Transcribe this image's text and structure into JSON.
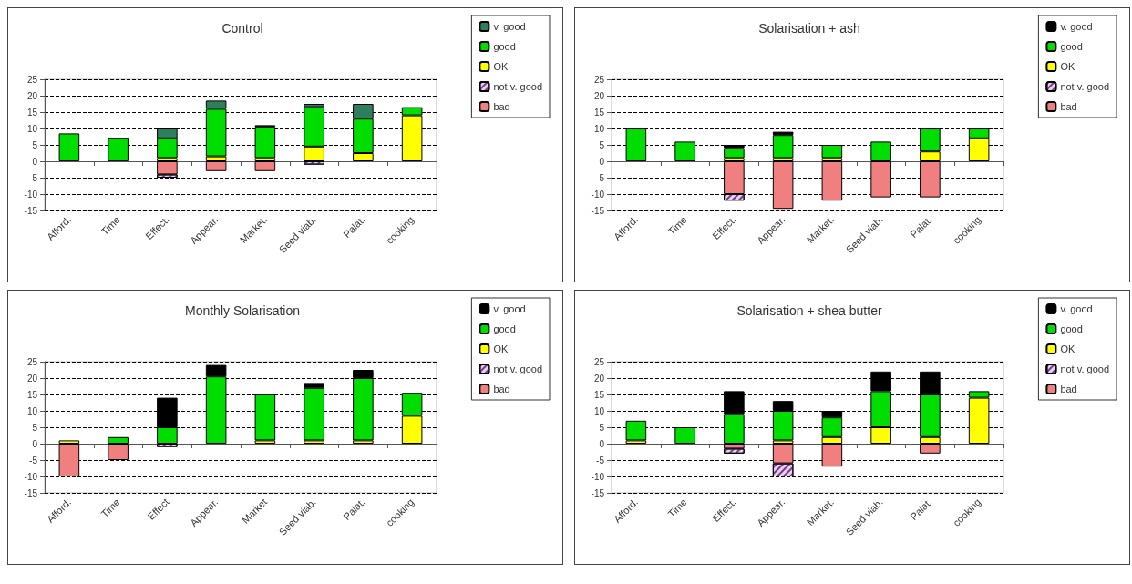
{
  "chart_data": [
    {
      "type": "bar",
      "title": "Control",
      "categories": [
        "Afford.",
        "Time",
        "Effect.",
        "Appear.",
        "Market.",
        "Seed viab.",
        "Palat.",
        "cooking"
      ],
      "stacked": true,
      "ylim": [
        -15,
        25
      ],
      "yticks": [
        -15,
        -10,
        -5,
        0,
        5,
        10,
        15,
        20,
        25
      ],
      "grid": "y",
      "legend": "top right",
      "series": [
        {
          "name": "bad",
          "color": "#f08080",
          "values": [
            null,
            null,
            -4,
            -3,
            -3,
            null,
            null,
            null
          ]
        },
        {
          "name": "not v. good",
          "color": "#e6d0ee",
          "values": [
            null,
            null,
            -1,
            null,
            null,
            -1,
            null,
            null
          ]
        },
        {
          "name": "OK",
          "color": "#ffff00",
          "values": [
            null,
            null,
            1,
            1.5,
            1,
            4.5,
            2.5,
            14
          ]
        },
        {
          "name": "good",
          "color": "#00dd00",
          "values": [
            8.5,
            7,
            6,
            14.5,
            9.5,
            12,
            10.5,
            2.5
          ]
        },
        {
          "name": "v. good",
          "color": "#2f7f5f",
          "values": [
            null,
            null,
            3,
            2.5,
            0.5,
            1,
            4.5,
            null
          ]
        }
      ]
    },
    {
      "type": "bar",
      "title": "Solarisation + ash",
      "categories": [
        "Afford.",
        "Time",
        "Effect.",
        "Appear.",
        "Market.",
        "Seed viab.",
        "Palat.",
        "cooking"
      ],
      "stacked": true,
      "ylim": [
        -15,
        25
      ],
      "yticks": [
        -15,
        -10,
        -5,
        0,
        5,
        10,
        15,
        20,
        25
      ],
      "grid": "y",
      "legend": "top right",
      "series": [
        {
          "name": "bad",
          "color": "#f08080",
          "values": [
            null,
            null,
            -10,
            -14.5,
            -12,
            -11,
            -11,
            null
          ]
        },
        {
          "name": "not v. good",
          "color": "#e6d0ee",
          "values": [
            null,
            null,
            -2,
            null,
            null,
            null,
            null,
            null
          ]
        },
        {
          "name": "OK",
          "color": "#ffff00",
          "values": [
            null,
            null,
            1,
            1,
            1,
            null,
            3,
            7
          ]
        },
        {
          "name": "good",
          "color": "#00dd00",
          "values": [
            10,
            6,
            3,
            7,
            4,
            6,
            7,
            3
          ]
        },
        {
          "name": "v. good",
          "color": "#000000",
          "values": [
            null,
            null,
            1,
            1,
            null,
            null,
            null,
            null
          ]
        }
      ]
    },
    {
      "type": "bar",
      "title": "Monthly Solarisation",
      "categories": [
        "Afford.",
        "Time",
        "Effect",
        "Appear.",
        "Market",
        "Seed viab.",
        "Palat.",
        "cooking"
      ],
      "stacked": true,
      "ylim": [
        -15,
        25
      ],
      "yticks": [
        -15,
        -10,
        -5,
        0,
        5,
        10,
        15,
        20,
        25
      ],
      "grid": "y",
      "legend": "top right",
      "series": [
        {
          "name": "bad",
          "color": "#f08080",
          "values": [
            -10,
            -5,
            null,
            null,
            null,
            null,
            null,
            null
          ]
        },
        {
          "name": "not v. good",
          "color": "#e6d0ee",
          "values": [
            null,
            null,
            -1,
            null,
            null,
            null,
            null,
            null
          ]
        },
        {
          "name": "OK",
          "color": "#ffff00",
          "values": [
            1,
            null,
            null,
            null,
            1,
            1,
            1,
            8.5
          ]
        },
        {
          "name": "good",
          "color": "#00dd00",
          "values": [
            null,
            2,
            5,
            20.5,
            14,
            16,
            19,
            7
          ]
        },
        {
          "name": "v. good",
          "color": "#000000",
          "values": [
            null,
            null,
            9,
            3.5,
            null,
            1.5,
            2.5,
            null
          ]
        }
      ]
    },
    {
      "type": "bar",
      "title": "Solarisation + shea butter",
      "categories": [
        "Afford.",
        "Time",
        "Effect.",
        "Appear.",
        "Market.",
        "Seed viab.",
        "Palat.",
        "cooking"
      ],
      "stacked": true,
      "ylim": [
        -15,
        25
      ],
      "yticks": [
        -15,
        -10,
        -5,
        0,
        5,
        10,
        15,
        20,
        25
      ],
      "grid": "y",
      "legend": "top right",
      "series": [
        {
          "name": "bad",
          "color": "#f08080",
          "values": [
            null,
            null,
            -1.5,
            -6,
            -7,
            null,
            -3,
            null
          ]
        },
        {
          "name": "not v. good",
          "color": "#e6d0ee",
          "values": [
            null,
            null,
            -1.5,
            -4,
            null,
            null,
            null,
            null
          ]
        },
        {
          "name": "OK",
          "color": "#ffff00",
          "values": [
            1,
            null,
            null,
            1,
            2,
            5,
            2,
            14
          ]
        },
        {
          "name": "good",
          "color": "#00dd00",
          "values": [
            6,
            5,
            9,
            9,
            6,
            11,
            13,
            2
          ]
        },
        {
          "name": "v. good",
          "color": "#000000",
          "values": [
            null,
            null,
            7,
            3,
            2,
            6,
            7,
            null
          ]
        }
      ]
    }
  ]
}
